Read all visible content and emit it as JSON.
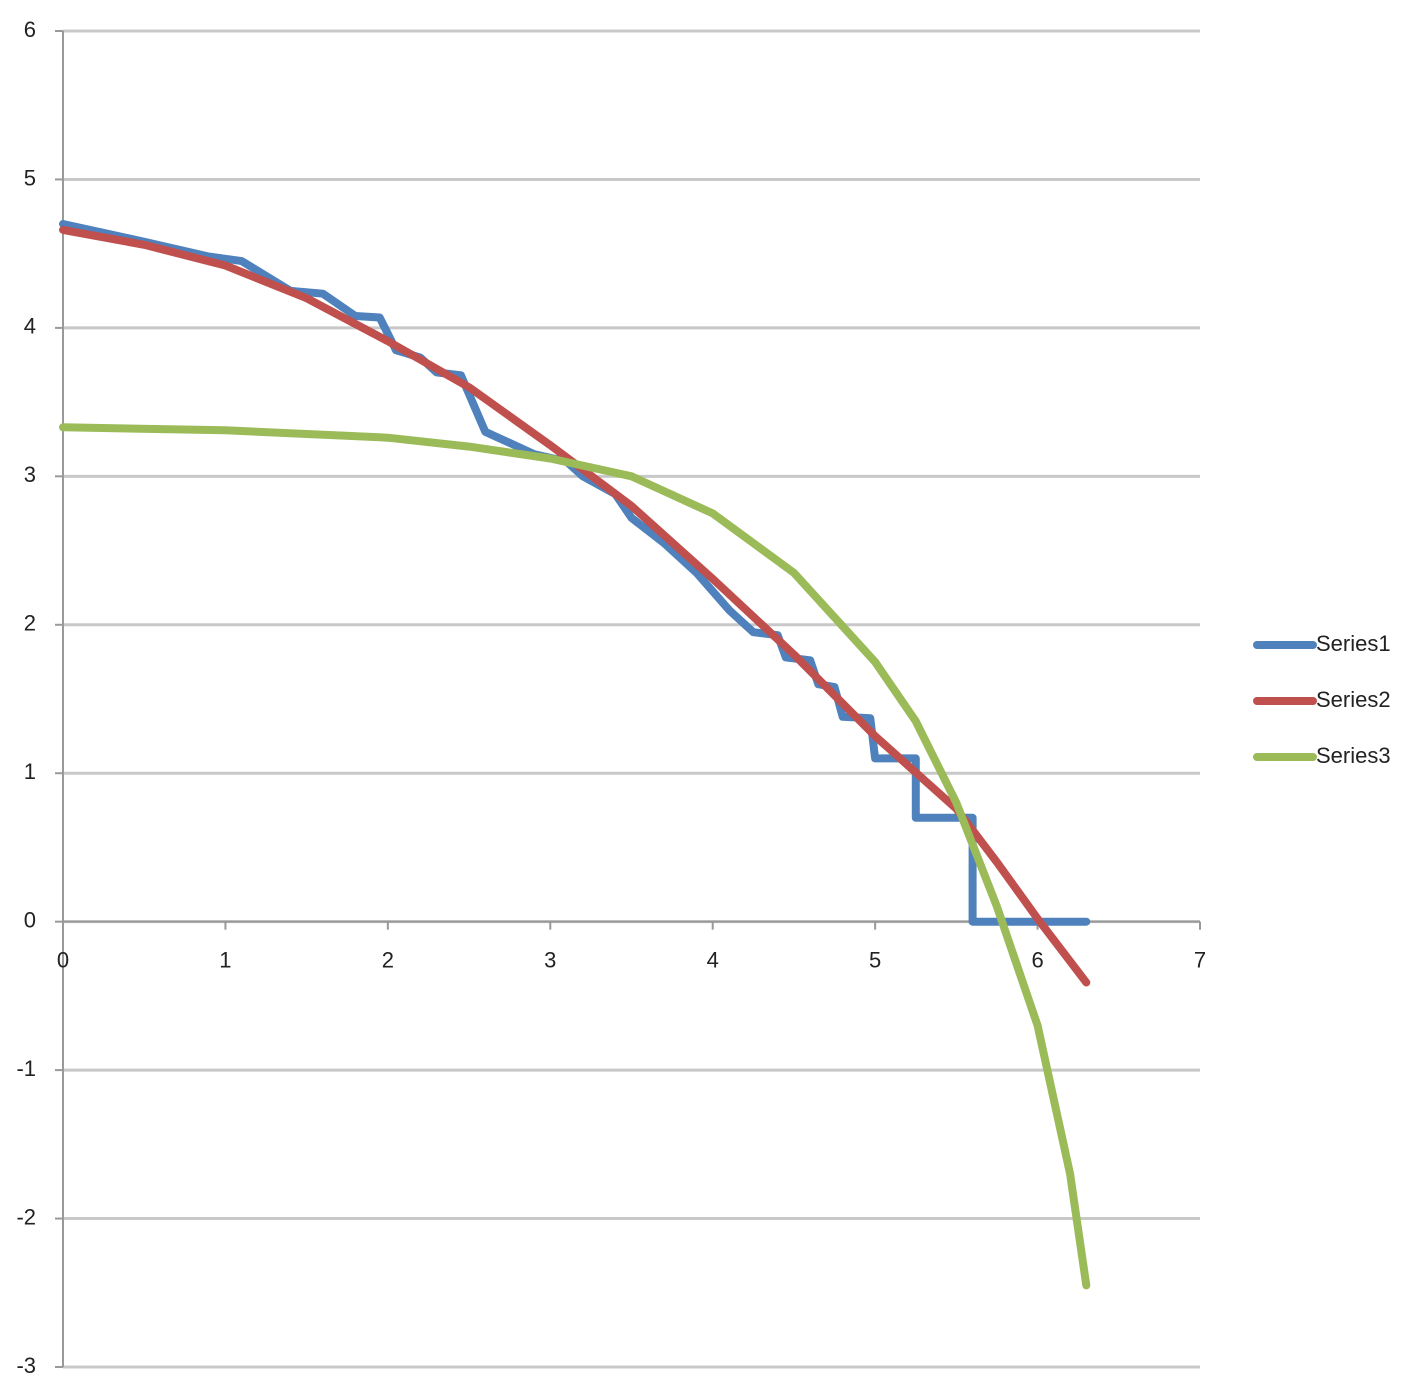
{
  "chart_data": {
    "type": "line",
    "xlim": [
      0,
      7
    ],
    "xticks": [
      0,
      1,
      2,
      3,
      4,
      5,
      6,
      7
    ],
    "ylim": [
      -3,
      6
    ],
    "yticks": [
      -3,
      -2,
      -1,
      0,
      1,
      2,
      3,
      4,
      5,
      6
    ],
    "grid": true,
    "legend": "right",
    "series": [
      {
        "name": "Series1",
        "color": "#4f81bd",
        "x": [
          0,
          0.5,
          0.9,
          1.1,
          1.4,
          1.6,
          1.8,
          1.95,
          2.05,
          2.2,
          2.3,
          2.45,
          2.6,
          2.8,
          2.9,
          3.1,
          3.2,
          3.4,
          3.5,
          3.7,
          3.9,
          4.1,
          4.25,
          4.4,
          4.45,
          4.6,
          4.65,
          4.75,
          4.8,
          4.97,
          5.0,
          5.25,
          5.25,
          5.6,
          5.6,
          6.3
        ],
        "values": [
          4.7,
          4.58,
          4.48,
          4.45,
          4.25,
          4.23,
          4.08,
          4.07,
          3.85,
          3.8,
          3.7,
          3.68,
          3.3,
          3.2,
          3.15,
          3.1,
          3.0,
          2.88,
          2.72,
          2.55,
          2.35,
          2.1,
          1.95,
          1.93,
          1.78,
          1.76,
          1.6,
          1.58,
          1.38,
          1.37,
          1.1,
          1.1,
          0.7,
          0.7,
          0.0,
          0.0
        ]
      },
      {
        "name": "Series2",
        "color": "#c0504d",
        "x": [
          0,
          0.5,
          1,
          1.5,
          2,
          2.5,
          3,
          3.5,
          4,
          4.5,
          5,
          5.5,
          5.75,
          6,
          6.3
        ],
        "values": [
          4.66,
          4.56,
          4.42,
          4.2,
          3.91,
          3.6,
          3.21,
          2.8,
          2.31,
          1.8,
          1.25,
          0.76,
          0.4,
          0.02,
          -0.41
        ]
      },
      {
        "name": "Series3",
        "color": "#9bbb59",
        "x": [
          0,
          1,
          2,
          2.5,
          3,
          3.5,
          4,
          4.5,
          5,
          5.25,
          5.5,
          5.75,
          6,
          6.2,
          6.3
        ],
        "values": [
          3.33,
          3.31,
          3.26,
          3.2,
          3.12,
          3.0,
          2.75,
          2.35,
          1.75,
          1.35,
          0.8,
          0.1,
          -0.7,
          -1.7,
          -2.45
        ]
      }
    ]
  }
}
